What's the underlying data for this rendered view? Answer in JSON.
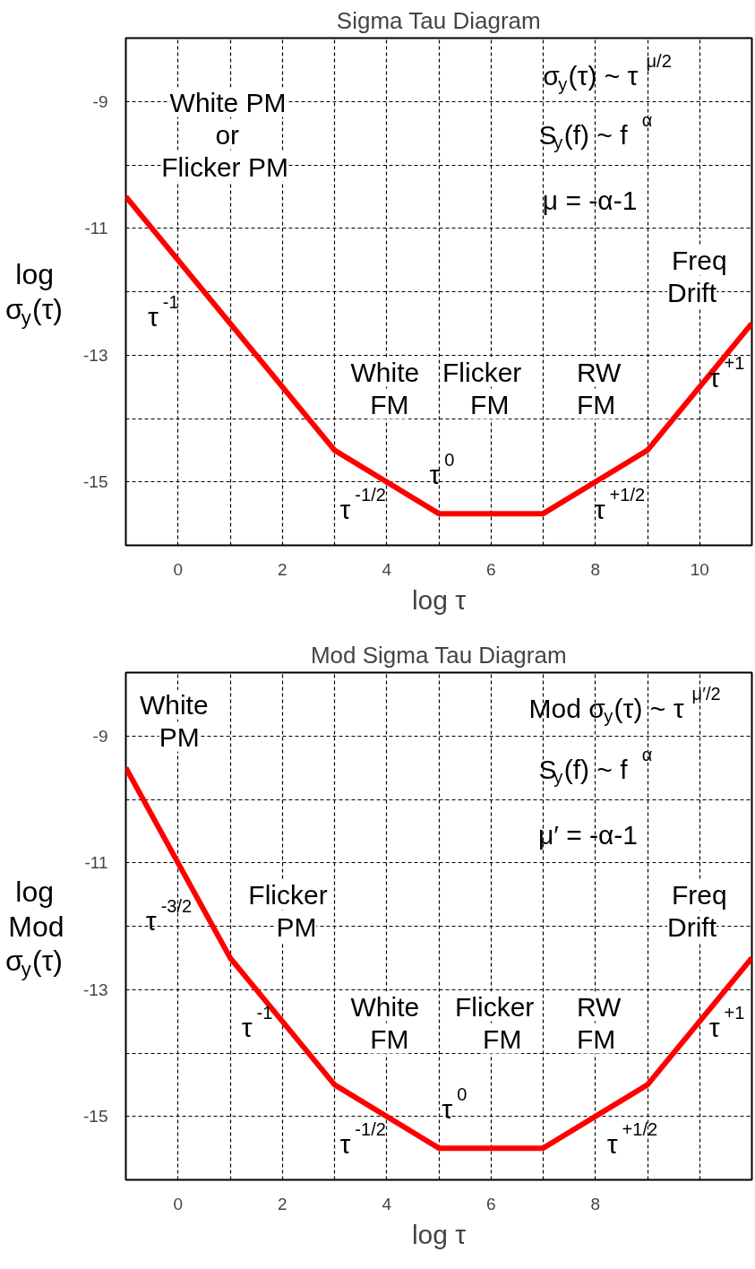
{
  "chart_data": [
    {
      "type": "line",
      "title": "Sigma Tau Diagram",
      "xlabel": "log τ",
      "ylabel": "log\nσ$_{y}$(τ)",
      "x": [
        -1,
        3,
        5,
        7,
        9,
        11
      ],
      "series": [
        {
          "color": "#ff0000",
          "values": [
            -10.5,
            -14.5,
            -15.5,
            -15.5,
            -14.5,
            -12.5
          ]
        }
      ],
      "xlim": [
        -1,
        11
      ],
      "ylim": [
        -16,
        -8
      ],
      "xticks": [
        {
          "value": -1,
          "label": null
        },
        0,
        {
          "value": 1,
          "label": null
        },
        2,
        {
          "value": 3,
          "label": null
        },
        4,
        {
          "value": 5,
          "label": null
        },
        6,
        {
          "value": 7,
          "label": null
        },
        8,
        {
          "value": 9,
          "label": null
        },
        10
      ],
      "yticks": [
        -15,
        {
          "value": -14,
          "label": null
        },
        -13,
        {
          "value": -12,
          "label": null
        },
        -11,
        {
          "value": -10,
          "label": null
        },
        -9
      ],
      "grid": true,
      "annotations": [
        "White PM\nor\nFlicker PM",
        "σ$_{y}$(τ) ~ τ$^{μ/2}$",
        "S$_{y}$(f) ~ f$^{α}$",
        "μ = -α-1",
        "Freq\nDrift",
        "τ$^{-1}$",
        "White\nFM",
        "Flicker\nFM",
        "RW\nFM",
        "τ$^{+1}$",
        "τ$^{-1/2}$",
        "τ$^{0}$",
        "τ$^{+1/2}$"
      ]
    },
    {
      "type": "line",
      "title": "Mod Sigma Tau Diagram",
      "xlabel": "log τ",
      "ylabel": "log\nMod\nσ$_{y}$(τ)",
      "x": [
        -1,
        1,
        3,
        5,
        7,
        9,
        11
      ],
      "series": [
        {
          "color": "#ff0000",
          "values": [
            -9.5,
            -12.5,
            -14.5,
            -15.5,
            -15.5,
            -14.5,
            -12.5
          ]
        }
      ],
      "xlim": [
        -1,
        11
      ],
      "ylim": [
        -16,
        -8
      ],
      "xticks": [
        {
          "value": -1,
          "label": null
        },
        0,
        {
          "value": 1,
          "label": null
        },
        2,
        {
          "value": 3,
          "label": null
        },
        4,
        {
          "value": 5,
          "label": null
        },
        6,
        {
          "value": 7,
          "label": null
        },
        8,
        {
          "value": 9,
          "label": null
        },
        {
          "value": 10,
          "label": null
        }
      ],
      "yticks": [
        -15,
        {
          "value": -14,
          "label": null
        },
        -13,
        {
          "value": -12,
          "label": null
        },
        -11,
        {
          "value": -10,
          "label": null
        },
        -9
      ],
      "grid": true,
      "annotations": [
        "White\nPM",
        "Mod σ$_{y}$(τ) ~ τ$^{μ′/2}$",
        "S$_{y}$(f) ~ f$^{α}$",
        "μ′ = -α-1",
        "τ$^{-3/2}$",
        "Flicker\nPM",
        "Freq\nDrift",
        "τ$^{-1}$",
        "White\nFM",
        "Flicker\nFM",
        "RW\nFM",
        "τ$^{+1}$",
        "τ$^{-1/2}$",
        "τ$^{0}$",
        "τ$^{+1/2}$"
      ]
    }
  ]
}
